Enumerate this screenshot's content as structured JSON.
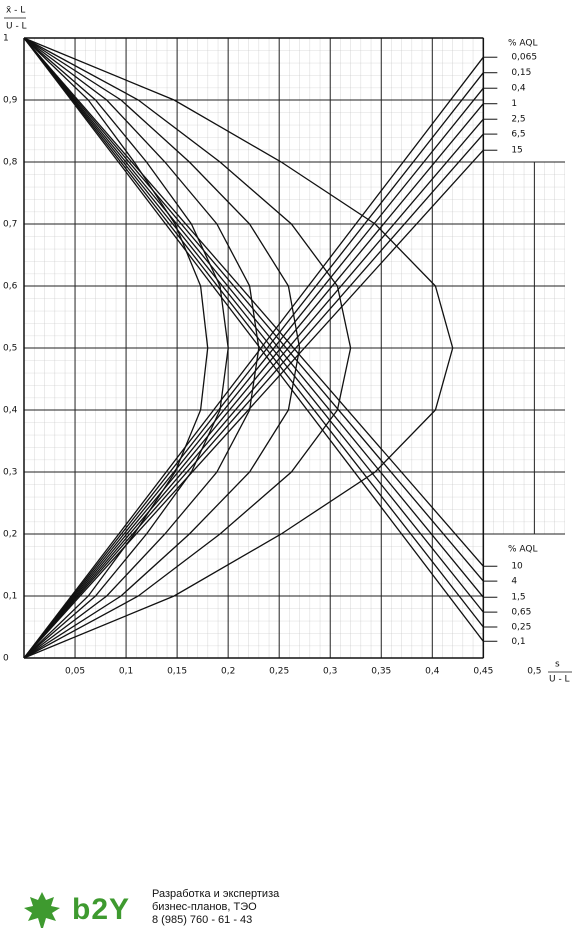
{
  "chart_data": {
    "type": "line",
    "ylabel": {
      "numerator": "x̄ - L",
      "denominator": "U - L"
    },
    "xlabel": {
      "numerator": "s",
      "denominator": "U - L"
    },
    "xlim": [
      0,
      0.53
    ],
    "ylim": [
      0,
      1
    ],
    "xticks": [
      {
        "value": 0.05,
        "label": "0,05"
      },
      {
        "value": 0.1,
        "label": "0,1"
      },
      {
        "value": 0.15,
        "label": "0,15"
      },
      {
        "value": 0.2,
        "label": "0,2"
      },
      {
        "value": 0.25,
        "label": "0,25"
      },
      {
        "value": 0.3,
        "label": "0,3"
      },
      {
        "value": 0.35,
        "label": "0,35"
      },
      {
        "value": 0.4,
        "label": "0,4"
      },
      {
        "value": 0.45,
        "label": "0,45"
      },
      {
        "value": 0.5,
        "label": "0,5"
      }
    ],
    "yticks": [
      0,
      {
        "value": 0.1,
        "label": "0,1"
      },
      {
        "value": 0.2,
        "label": "0,2"
      },
      {
        "value": 0.3,
        "label": "0,3"
      },
      {
        "value": 0.4,
        "label": "0,4"
      },
      {
        "value": 0.5,
        "label": "0,5"
      },
      {
        "value": 0.6,
        "label": "0,6"
      },
      {
        "value": 0.7,
        "label": "0,7"
      },
      {
        "value": 0.8,
        "label": "0,8"
      },
      {
        "value": 0.9,
        "label": "0,9"
      },
      1
    ],
    "grid": true,
    "color": "#111",
    "annotations": [
      "% AQL",
      "% AQL"
    ],
    "series": [
      {
        "name": "0,065",
        "x": [
          0,
          0.45
        ],
        "y": [
          0,
          0.969
        ]
      },
      {
        "name": "0,15",
        "x": [
          0,
          0.45
        ],
        "y": [
          0,
          0.944
        ]
      },
      {
        "name": "0,4",
        "x": [
          0,
          0.45
        ],
        "y": [
          0,
          0.919
        ]
      },
      {
        "name": "1",
        "x": [
          0,
          0.45
        ],
        "y": [
          0,
          0.894
        ]
      },
      {
        "name": "2,5",
        "x": [
          0,
          0.45
        ],
        "y": [
          0,
          0.869
        ]
      },
      {
        "name": "6,5",
        "x": [
          0,
          0.45
        ],
        "y": [
          0,
          0.845
        ]
      },
      {
        "name": "15",
        "x": [
          0,
          0.45
        ],
        "y": [
          0,
          0.819
        ]
      },
      {
        "name": "10",
        "x": [
          0,
          0.45
        ],
        "y": [
          1,
          0.148
        ]
      },
      {
        "name": "4",
        "x": [
          0,
          0.45
        ],
        "y": [
          1,
          0.124
        ]
      },
      {
        "name": "1,5",
        "x": [
          0,
          0.45
        ],
        "y": [
          1,
          0.098
        ]
      },
      {
        "name": "0,65",
        "x": [
          0,
          0.45
        ],
        "y": [
          1,
          0.074
        ]
      },
      {
        "name": "0,25",
        "x": [
          0,
          0.45
        ],
        "y": [
          1,
          0.05
        ]
      },
      {
        "name": "0,1",
        "x": [
          0,
          0.45
        ],
        "y": [
          1,
          0.027
        ]
      },
      {
        "x": [
          0,
          0.063,
          0.108,
          0.148,
          0.173,
          0.18,
          0.173,
          0.148,
          0.108,
          0.063,
          0
        ],
        "y": [
          1,
          0.9,
          0.8,
          0.7,
          0.6,
          0.5,
          0.4,
          0.3,
          0.2,
          0.1,
          0
        ]
      },
      {
        "x": [
          0,
          0.07,
          0.12,
          0.164,
          0.192,
          0.2,
          0.192,
          0.164,
          0.12,
          0.07,
          0
        ],
        "y": [
          1,
          0.9,
          0.8,
          0.7,
          0.6,
          0.5,
          0.4,
          0.3,
          0.2,
          0.1,
          0
        ]
      },
      {
        "x": [
          0,
          0.081,
          0.138,
          0.189,
          0.221,
          0.23,
          0.221,
          0.189,
          0.138,
          0.081,
          0
        ],
        "y": [
          1,
          0.9,
          0.8,
          0.7,
          0.6,
          0.5,
          0.4,
          0.3,
          0.2,
          0.1,
          0
        ]
      },
      {
        "x": [
          0,
          0.095,
          0.162,
          0.221,
          0.259,
          0.27,
          0.259,
          0.221,
          0.162,
          0.095,
          0
        ],
        "y": [
          1,
          0.9,
          0.8,
          0.7,
          0.6,
          0.5,
          0.4,
          0.3,
          0.2,
          0.1,
          0
        ]
      },
      {
        "x": [
          0,
          0.112,
          0.192,
          0.262,
          0.307,
          0.32,
          0.307,
          0.262,
          0.192,
          0.112,
          0
        ],
        "y": [
          1,
          0.9,
          0.8,
          0.7,
          0.6,
          0.5,
          0.4,
          0.3,
          0.2,
          0.1,
          0
        ]
      },
      {
        "x": [
          0,
          0.147,
          0.252,
          0.344,
          0.403,
          0.42,
          0.403,
          0.344,
          0.252,
          0.147,
          0
        ],
        "y": [
          1,
          0.9,
          0.8,
          0.7,
          0.6,
          0.5,
          0.4,
          0.3,
          0.2,
          0.1,
          0
        ]
      }
    ]
  },
  "footer": {
    "logo": "b2Y",
    "lines": [
      "Разработка и экспертиза",
      "бизнес-планов, ТЭО",
      "8 (985) 760 - 61 - 43"
    ]
  }
}
